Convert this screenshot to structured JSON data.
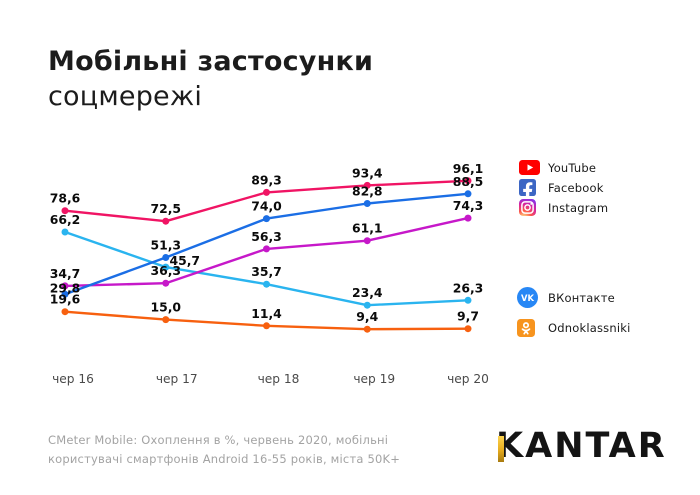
{
  "title": {
    "line1": "Мобільні застосунки",
    "line2": "соцмережі"
  },
  "chart_data": {
    "type": "line",
    "x_labels": [
      "чер 16",
      "чер 17",
      "чер 18",
      "чер 19",
      "чер 20"
    ],
    "ylim": [
      0,
      100
    ],
    "grid": false,
    "legend_position": "right",
    "value_labels_shown": true,
    "series": [
      {
        "name": "YouTube",
        "color": "#F01464",
        "values": [
          78.6,
          72.5,
          89.3,
          93.4,
          96.1
        ],
        "labels": [
          "78,6",
          "72,5",
          "89,3",
          "93,4",
          "96,1"
        ]
      },
      {
        "name": "Facebook",
        "color": "#1B6EE5",
        "values": [
          29.8,
          51.3,
          74.0,
          82.8,
          88.5
        ],
        "labels": [
          "29,8",
          "51,3",
          "74,0",
          "82,8",
          "88,5"
        ],
        "label_offsets": {
          "0": [
            0,
            6
          ]
        }
      },
      {
        "name": "Instagram",
        "color": "#C618C9",
        "values": [
          34.7,
          36.3,
          56.3,
          61.1,
          74.3
        ],
        "labels": [
          "34,7",
          "36,3",
          "56,3",
          "61,1",
          "74,3"
        ]
      },
      {
        "name": "ВКонтакте",
        "color": "#2AB4EF",
        "values": [
          66.2,
          45.7,
          35.7,
          23.4,
          26.3
        ],
        "labels": [
          "66,2",
          "45,7",
          "35,7",
          "23,4",
          "26,3"
        ],
        "label_offsets": {
          "1": [
            19,
            6
          ]
        }
      },
      {
        "name": "Odnoklassniki",
        "color": "#F7600F",
        "values": [
          19.6,
          15.0,
          11.4,
          9.4,
          9.7
        ],
        "labels": [
          "19,6",
          "15,0",
          "11,4",
          "9,4",
          "9,7"
        ]
      }
    ]
  },
  "legend": {
    "groups": [
      {
        "items": [
          {
            "icon": "youtube-icon",
            "label": "YouTube",
            "color": "#FF0000"
          },
          {
            "icon": "facebook-icon",
            "label": "Facebook",
            "color": "#3C66C4"
          },
          {
            "icon": "instagram-icon",
            "label": "Instagram",
            "color": "#D6249F"
          }
        ]
      },
      {
        "items": [
          {
            "icon": "vk-icon",
            "label": "ВКонтакте",
            "color": "#2787F5"
          },
          {
            "icon": "ok-icon",
            "label": "Odnoklassniki",
            "color": "#F7941E"
          }
        ]
      }
    ]
  },
  "footer": {
    "line1": "CMeter Mobile: Охоплення в %, червень 2020, мобільні",
    "line2": "користувачі смартфонів Android 16-55 років, міста 50K+"
  },
  "logo": {
    "text": "KANTAR",
    "accent_color": "#E7AC1E"
  }
}
